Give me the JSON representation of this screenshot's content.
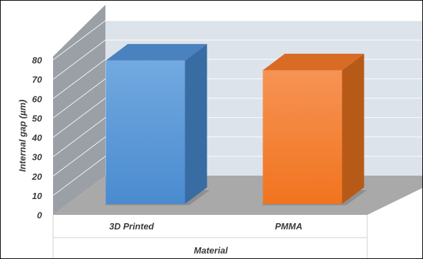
{
  "chart_data": {
    "type": "bar",
    "style": "3d-column",
    "categories": [
      "3D Printed",
      "PMMA"
    ],
    "values": [
      74,
      69
    ],
    "colors": [
      "#5b9bd5",
      "#f4802f"
    ],
    "xlabel": "Material",
    "ylabel": "Internal gap (µm)",
    "ylim": [
      0,
      80
    ],
    "yticks": [
      0,
      10,
      20,
      30,
      40,
      50,
      60,
      70,
      80
    ],
    "grid": true,
    "legend": "none"
  }
}
